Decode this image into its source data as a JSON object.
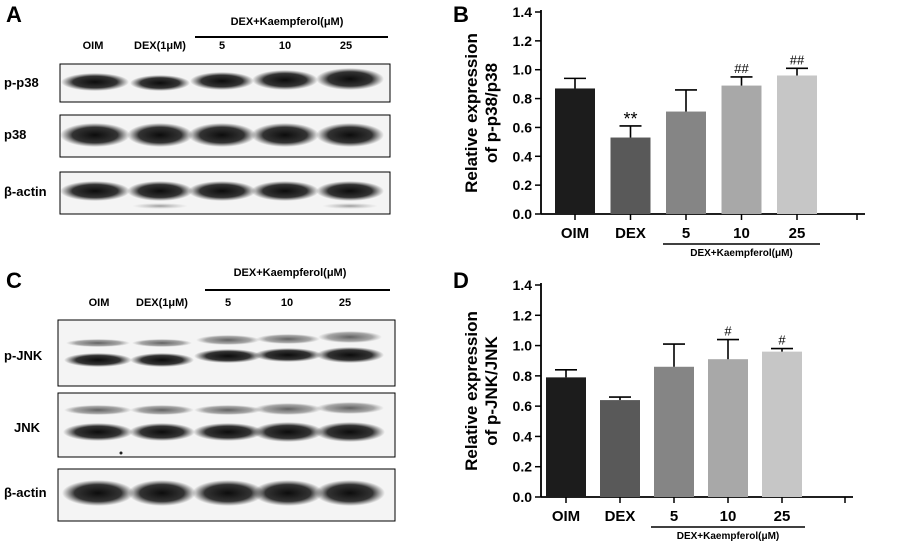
{
  "panels": {
    "a": {
      "letter": "A",
      "lane_labels": [
        "OIM",
        "DEX(1μM)",
        "5",
        "10",
        "25"
      ],
      "group_label": "DEX+Kaempferol(μM)",
      "rows": [
        {
          "name": "p-p38"
        },
        {
          "name": "p38"
        },
        {
          "name": "β-actin"
        }
      ]
    },
    "c": {
      "letter": "C",
      "lane_labels": [
        "OIM",
        "DEX(1μM)",
        "5",
        "10",
        "25"
      ],
      "group_label": "DEX+Kaempferol(μM)",
      "rows": [
        {
          "name": "p-JNK"
        },
        {
          "name": "JNK"
        },
        {
          "name": "β-actin"
        }
      ]
    },
    "b": {
      "letter": "B"
    },
    "d": {
      "letter": "D"
    }
  },
  "chart_data": [
    {
      "type": "bar",
      "panel": "B",
      "categories": [
        "OIM",
        "DEX",
        "5",
        "10",
        "25"
      ],
      "values": [
        0.87,
        0.53,
        0.71,
        0.89,
        0.96
      ],
      "errors": [
        0.07,
        0.08,
        0.15,
        0.06,
        0.05
      ],
      "annotations": [
        "",
        "**",
        "",
        "##",
        "##"
      ],
      "colors": [
        "#1c1c1c",
        "#595959",
        "#858585",
        "#a8a8a8",
        "#c6c6c6"
      ],
      "ylabel_line1": "Relative expression",
      "ylabel_line2": "of p-p38/p38",
      "group_label": "DEX+Kaempferol(μM)",
      "ylim": [
        0,
        1.4
      ],
      "yticks": [
        "0.0",
        "0.2",
        "0.4",
        "0.6",
        "0.8",
        "1.0",
        "1.2",
        "1.4"
      ]
    },
    {
      "type": "bar",
      "panel": "D",
      "categories": [
        "OIM",
        "DEX",
        "5",
        "10",
        "25"
      ],
      "values": [
        0.79,
        0.64,
        0.86,
        0.91,
        0.96
      ],
      "errors": [
        0.05,
        0.02,
        0.15,
        0.13,
        0.02
      ],
      "annotations": [
        "",
        "",
        "",
        "#",
        "#"
      ],
      "colors": [
        "#1c1c1c",
        "#595959",
        "#858585",
        "#a8a8a8",
        "#c6c6c6"
      ],
      "ylabel_line1": "Relative expression",
      "ylabel_line2": "of p-JNK/JNK",
      "group_label": "DEX+Kaempferol(μM)",
      "ylim": [
        0,
        1.4
      ],
      "yticks": [
        "0.0",
        "0.2",
        "0.4",
        "0.6",
        "0.8",
        "1.0",
        "1.2",
        "1.4"
      ]
    }
  ]
}
